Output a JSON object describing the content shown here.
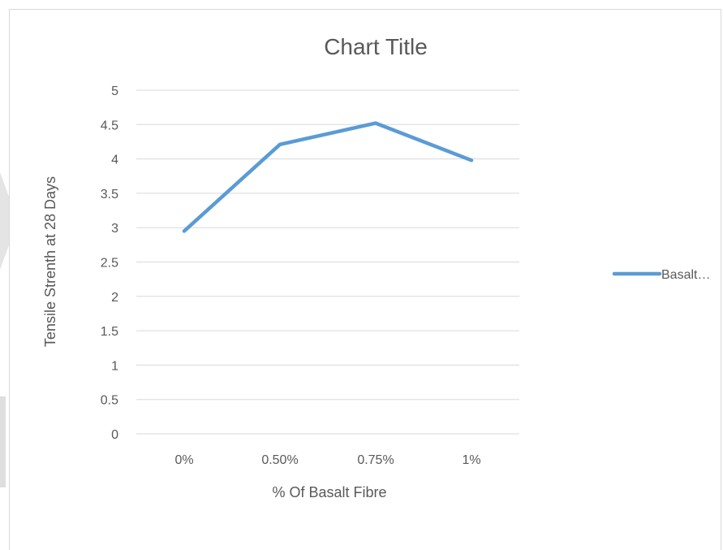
{
  "chart_data": {
    "type": "line",
    "title": "Chart Title",
    "xlabel": "% Of Basalt Fibre",
    "ylabel": "Tensile Strenth at 28 Days",
    "categories": [
      "0%",
      "0.50%",
      "0.75%",
      "1%"
    ],
    "series": [
      {
        "name": "Basalt…",
        "values": [
          2.95,
          4.21,
          4.52,
          3.98
        ]
      }
    ],
    "ylim": [
      0,
      5
    ],
    "yticks": [
      "0",
      "0.5",
      "1",
      "1.5",
      "2",
      "2.5",
      "3",
      "3.5",
      "4",
      "4.5",
      "5"
    ],
    "grid": true,
    "legend": "right",
    "colors": {
      "series": "#5b9bd5",
      "grid": "#d9d9d9",
      "text": "#595959"
    }
  }
}
